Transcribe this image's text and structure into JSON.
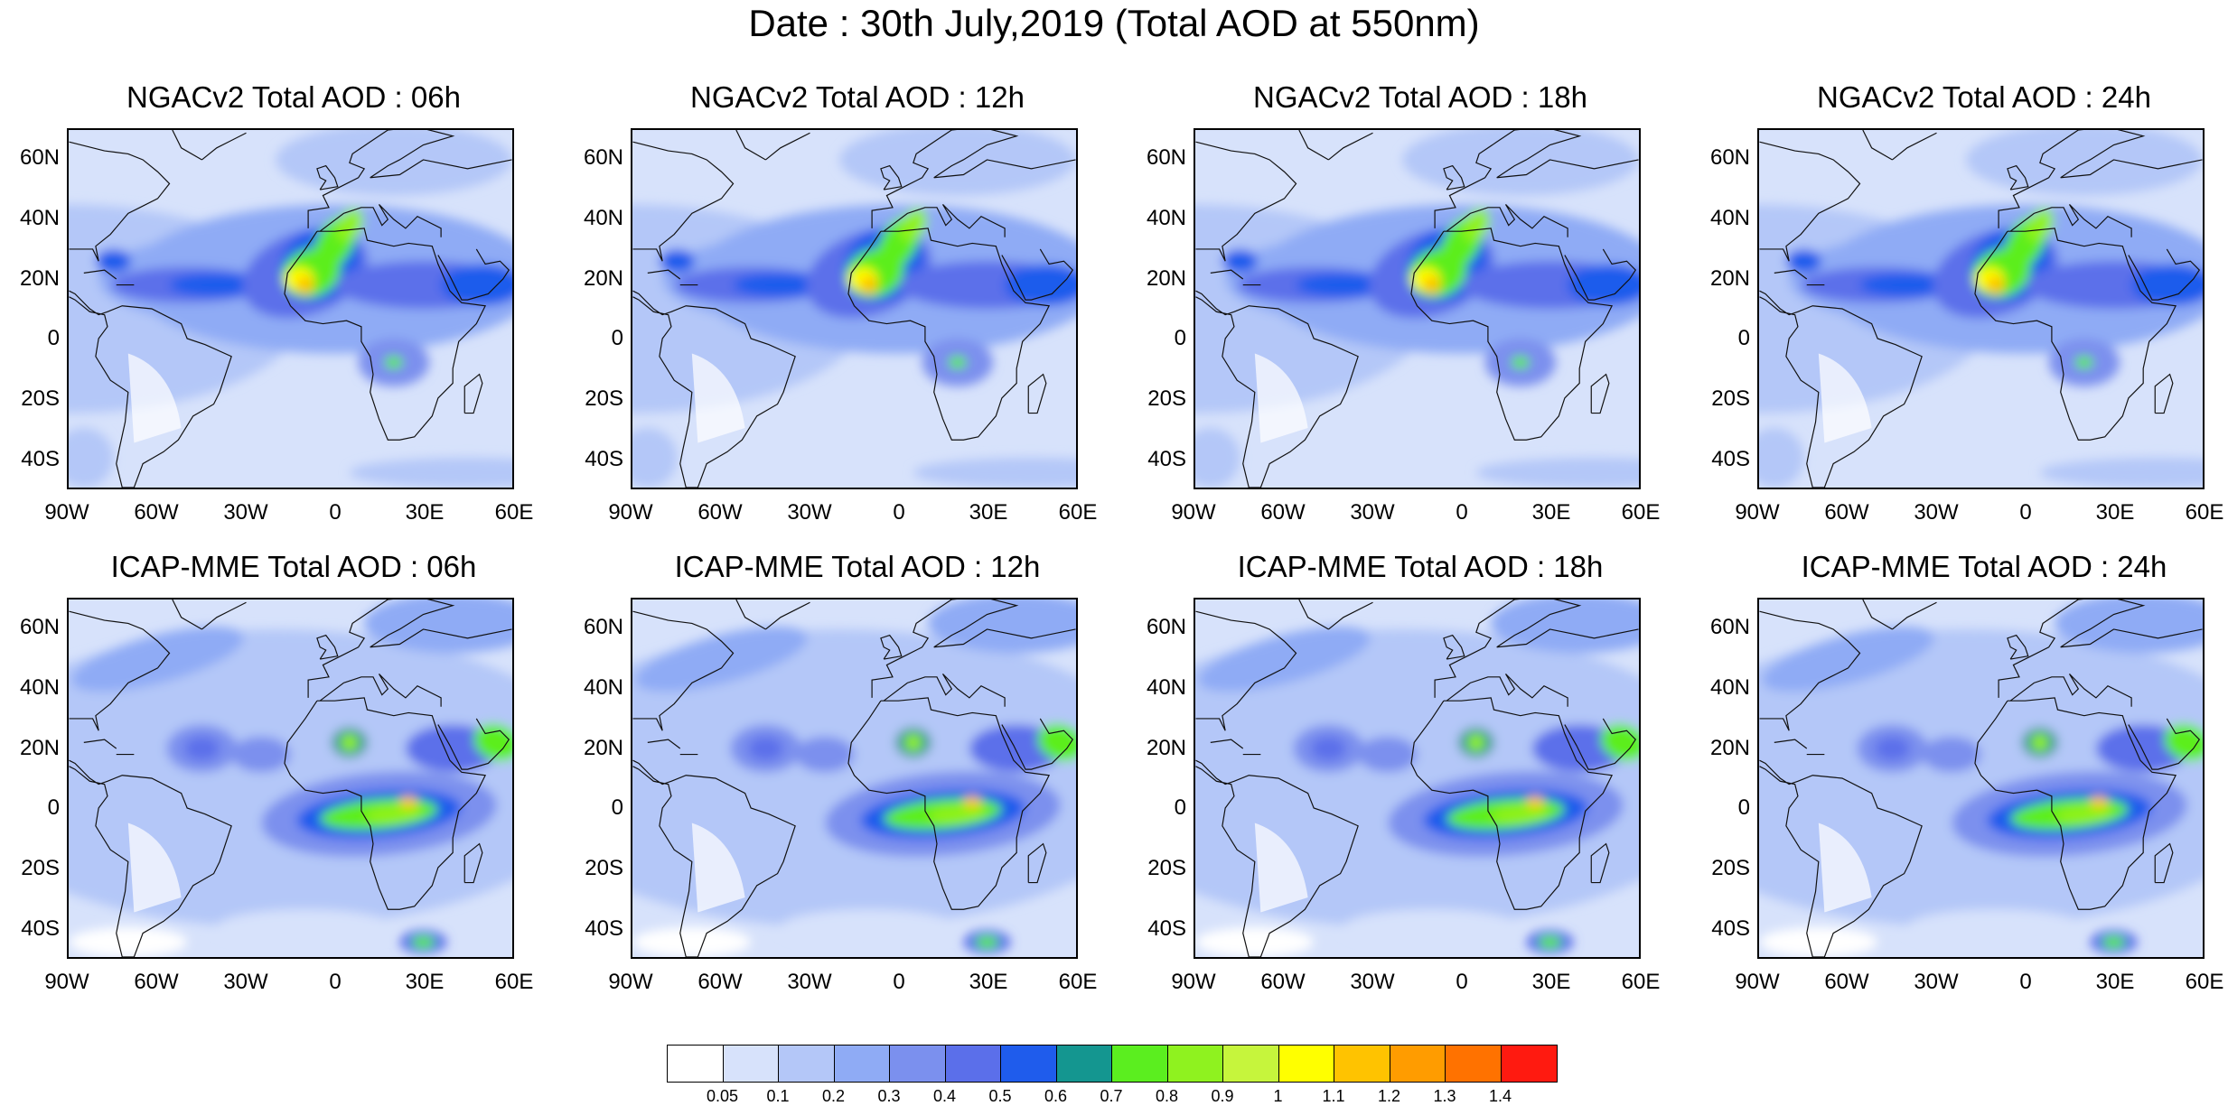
{
  "title": "Date : 30th July,2019 (Total AOD at 550nm)",
  "axes": {
    "lat_labels": [
      "60N",
      "40N",
      "20N",
      "0",
      "20S",
      "40S"
    ],
    "lon_labels": [
      "90W",
      "60W",
      "30W",
      "0",
      "30E",
      "60E"
    ],
    "lat_values": [
      60,
      40,
      20,
      0,
      -20,
      -40
    ],
    "lon_values": [
      -90,
      -60,
      -30,
      0,
      30,
      60
    ],
    "lat_range": [
      -50,
      70
    ],
    "lon_range": [
      -90,
      60
    ]
  },
  "panels": [
    {
      "title": "NGACv2 Total AOD : 06h",
      "model": "NGACv2",
      "lead_hours": 6
    },
    {
      "title": "NGACv2 Total AOD : 12h",
      "model": "NGACv2",
      "lead_hours": 12
    },
    {
      "title": "NGACv2 Total AOD : 18h",
      "model": "NGACv2",
      "lead_hours": 18
    },
    {
      "title": "NGACv2 Total AOD : 24h",
      "model": "NGACv2",
      "lead_hours": 24
    },
    {
      "title": "ICAP-MME Total AOD : 06h",
      "model": "ICAP-MME",
      "lead_hours": 6
    },
    {
      "title": "ICAP-MME Total AOD : 12h",
      "model": "ICAP-MME",
      "lead_hours": 12
    },
    {
      "title": "ICAP-MME Total AOD : 18h",
      "model": "ICAP-MME",
      "lead_hours": 18
    },
    {
      "title": "ICAP-MME Total AOD : 24h",
      "model": "ICAP-MME",
      "lead_hours": 24
    }
  ],
  "colorbar": {
    "levels": [
      "0.05",
      "0.1",
      "0.2",
      "0.3",
      "0.4",
      "0.5",
      "0.6",
      "0.7",
      "0.8",
      "0.9",
      "1",
      "1.1",
      "1.2",
      "1.3",
      "1.4"
    ],
    "colors": [
      "#ffffff",
      "#d7e2fb",
      "#b4c7f8",
      "#8fabf5",
      "#7b90ee",
      "#5b6fea",
      "#1f5cec",
      "#149690",
      "#5bee1f",
      "#8ff21f",
      "#c6f53c",
      "#ffff00",
      "#ffc300",
      "#ff9c00",
      "#ff7200",
      "#ff1a10"
    ]
  }
}
